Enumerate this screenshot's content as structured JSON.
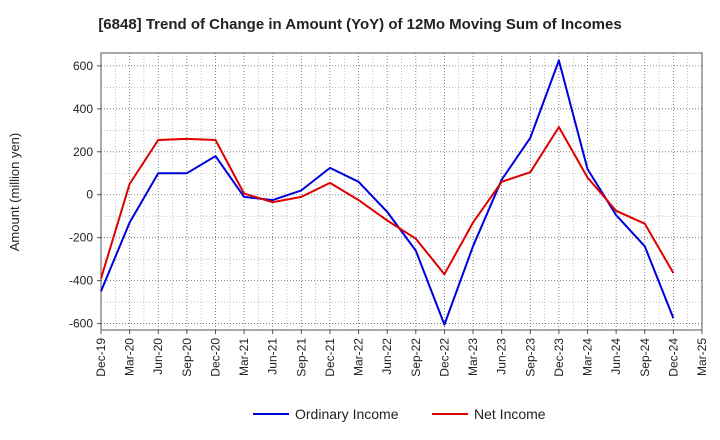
{
  "chart_data": {
    "type": "line",
    "title": "[6848]  Trend of Change in Amount (YoY) of 12Mo Moving Sum of Incomes",
    "xlabel": "",
    "ylabel": "Amount (million yen)",
    "ylim": [
      -630,
      660
    ],
    "yticks": [
      600,
      400,
      200,
      0,
      -200,
      -400,
      -600
    ],
    "grid": true,
    "legend_position": "bottom",
    "categories": [
      "Dec-19",
      "Mar-20",
      "Jun-20",
      "Sep-20",
      "Dec-20",
      "Mar-21",
      "Jun-21",
      "Sep-21",
      "Dec-21",
      "Mar-22",
      "Jun-22",
      "Sep-22",
      "Dec-22",
      "Mar-23",
      "Jun-23",
      "Sep-23",
      "Dec-23",
      "Mar-24",
      "Jun-24",
      "Sep-24",
      "Dec-24",
      "Mar-25"
    ],
    "series": [
      {
        "name": "Ordinary Income",
        "color": "#0000dd",
        "values": [
          -450,
          -130,
          100,
          100,
          180,
          -10,
          -25,
          20,
          125,
          60,
          -80,
          -260,
          -605,
          -240,
          70,
          265,
          625,
          120,
          -95,
          -240,
          -575,
          null
        ]
      },
      {
        "name": "Net Income",
        "color": "#dd0000",
        "values": [
          -390,
          50,
          255,
          260,
          255,
          5,
          -35,
          -10,
          55,
          -25,
          -120,
          -205,
          -370,
          -130,
          60,
          105,
          315,
          80,
          -75,
          -135,
          -365,
          null
        ]
      }
    ]
  }
}
